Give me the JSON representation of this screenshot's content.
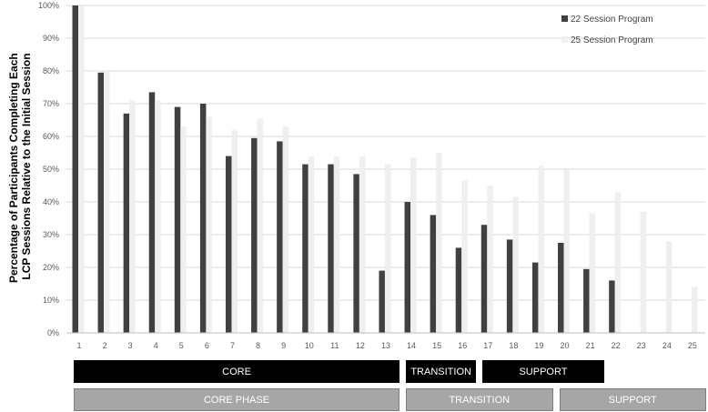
{
  "chart_data": {
    "type": "bar",
    "ylabel": "Percentage of Participants Completing Each LCP Sessions Relative to the Initial Session",
    "ylabel_lines": [
      "Percentage of Participants Completing Each",
      "LCP Sessions Relative to the Initial Session"
    ],
    "ylim": [
      0,
      100
    ],
    "yticks": [
      "0%",
      "10%",
      "20%",
      "30%",
      "40%",
      "50%",
      "60%",
      "70%",
      "80%",
      "90%",
      "100%"
    ],
    "categories": [
      "1",
      "2",
      "3",
      "4",
      "5",
      "6",
      "7",
      "8",
      "9",
      "10",
      "11",
      "12",
      "13",
      "14",
      "15",
      "16",
      "17",
      "18",
      "19",
      "20",
      "21",
      "22",
      "23",
      "24",
      "25"
    ],
    "grid": true,
    "legend_position": "top-right",
    "series": [
      {
        "name": "22 Session Program",
        "color": "#404040",
        "values": [
          100,
          79.5,
          67,
          73.5,
          69,
          70,
          54,
          59.5,
          58.5,
          51.5,
          51.5,
          48.5,
          19,
          40,
          36,
          26,
          33,
          28.5,
          21.5,
          27.5,
          19.5,
          16,
          null,
          null,
          null
        ]
      },
      {
        "name": "25 Session Program",
        "color": "#efefef",
        "values": [
          100,
          80,
          71,
          71,
          63,
          66,
          62,
          65.5,
          63,
          54,
          54,
          54,
          51.5,
          53.5,
          55,
          46.5,
          45,
          41.5,
          51,
          50,
          36.5,
          43,
          37,
          28,
          14
        ]
      }
    ]
  },
  "phases": {
    "row1": {
      "color": "#000000",
      "items": [
        {
          "label": "CORE",
          "start": 1,
          "end": 13
        },
        {
          "label": "TRANSITION",
          "start": 14,
          "end": 16
        },
        {
          "label": "SUPPORT",
          "start": 17,
          "end": 21
        }
      ]
    },
    "row2": {
      "color": "#a6a6a6",
      "items": [
        {
          "label": "CORE PHASE",
          "start": 1,
          "end": 13
        },
        {
          "label": "TRANSITION",
          "start": 14,
          "end": 19
        },
        {
          "label": "SUPPORT",
          "start": 20,
          "end": 25
        }
      ]
    }
  }
}
